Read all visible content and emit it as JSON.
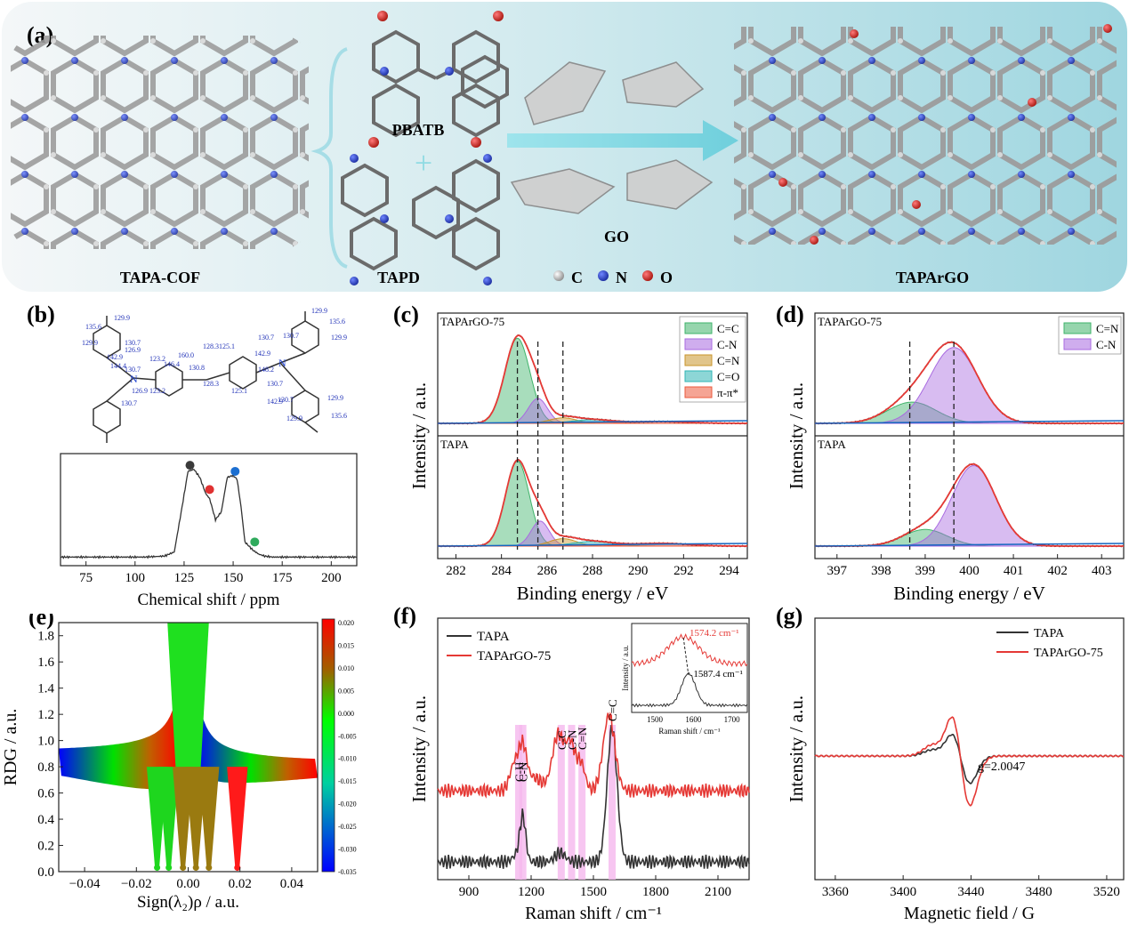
{
  "panel_letters": [
    "(a)",
    "(b)",
    "(c)",
    "(d)",
    "(e)",
    "(f)",
    "(g)"
  ],
  "scheme": {
    "labels": {
      "cof": "TAPA-COF",
      "pbatb": "PBATB",
      "plus": "+",
      "tapd": "TAPD",
      "go": "GO",
      "product": "TAPArGO"
    },
    "atom_legend": [
      {
        "symbol": "C",
        "color": "#8a8a8a"
      },
      {
        "symbol": "N",
        "color": "#1f3fc4"
      },
      {
        "symbol": "O",
        "color": "#c0201e"
      }
    ]
  },
  "nmr_structure": {
    "shift_labels": [
      "129.9",
      "135.6",
      "129.9",
      "130.7",
      "142.9",
      "130.7",
      "144.4",
      "126.9",
      "123.2",
      "146.4",
      "160.0",
      "130.8",
      "128.3",
      "125.1",
      "128.3",
      "125.1",
      "130.7",
      "142.9",
      "148.2",
      "130.7",
      "142.9",
      "129.9",
      "135.6",
      "129.9",
      "130.7",
      "130.7",
      "129.9",
      "135.6",
      "129.9",
      "126.9",
      "123.2",
      "130.7"
    ],
    "atom_letter": "N"
  },
  "chart_data": [
    {
      "id": "b",
      "type": "line",
      "xlabel": "Chemical shift / ppm",
      "ylabel": "",
      "xlim": [
        62,
        213
      ],
      "ylim": [
        0,
        1
      ],
      "xticks": [
        75,
        100,
        125,
        150,
        175,
        200
      ],
      "series": [
        {
          "x": [
            62,
            75,
            90,
            105,
            115,
            120,
            124,
            127,
            130,
            133,
            136,
            138,
            141,
            144,
            147,
            150,
            152,
            154,
            156,
            158,
            160,
            163,
            166,
            170,
            180,
            190,
            200,
            213
          ],
          "y": [
            0.05,
            0.05,
            0.05,
            0.05,
            0.06,
            0.1,
            0.55,
            0.9,
            0.92,
            0.84,
            0.68,
            0.63,
            0.42,
            0.5,
            0.84,
            0.86,
            0.82,
            0.55,
            0.2,
            0.16,
            0.12,
            0.08,
            0.06,
            0.05,
            0.05,
            0.05,
            0.05,
            0.05
          ],
          "color": "#333333"
        }
      ],
      "markers": [
        {
          "x": 128,
          "y": 0.96,
          "color": "#3a3a3a"
        },
        {
          "x": 138,
          "y": 0.72,
          "color": "#e03131"
        },
        {
          "x": 151,
          "y": 0.9,
          "color": "#1c6fd1"
        },
        {
          "x": 161,
          "y": 0.2,
          "color": "#2faa5c"
        }
      ]
    },
    {
      "id": "c",
      "type": "area",
      "xlabel": "Binding energy / eV",
      "ylabel": "Intensity / a.u.",
      "xlim": [
        281.2,
        294.8
      ],
      "xticks": [
        282,
        284,
        286,
        288,
        290,
        292,
        294
      ],
      "subplots": [
        {
          "label": "TAPArGO-75",
          "components": [
            {
              "name": "C=C",
              "center": 284.7,
              "width": 0.55,
              "height": 0.92
            },
            {
              "name": "C-N",
              "center": 285.6,
              "width": 0.42,
              "height": 0.27
            },
            {
              "name": "C=N",
              "center": 286.7,
              "width": 0.6,
              "height": 0.06
            },
            {
              "name": "C=O",
              "center": 288.0,
              "width": 0.9,
              "height": 0.04
            },
            {
              "name": "π-π*",
              "center": 291.0,
              "width": 1.2,
              "height": 0.02
            }
          ]
        },
        {
          "label": "TAPA",
          "components": [
            {
              "name": "C=C",
              "center": 284.7,
              "width": 0.52,
              "height": 0.92
            },
            {
              "name": "C-N",
              "center": 285.7,
              "width": 0.4,
              "height": 0.27
            },
            {
              "name": "C=N",
              "center": 286.7,
              "width": 0.6,
              "height": 0.08
            },
            {
              "name": "C=O",
              "center": 288.0,
              "width": 0.9,
              "height": 0.05
            },
            {
              "name": "π-π*",
              "center": 291.0,
              "width": 1.2,
              "height": 0.03
            }
          ]
        }
      ],
      "dashed_lines_x": [
        284.7,
        285.6,
        286.7
      ],
      "legend": [
        {
          "name": "C=C",
          "color": "#3fb36a"
        },
        {
          "name": "C-N",
          "color": "#a86ae0"
        },
        {
          "name": "C=N",
          "color": "#c9952b"
        },
        {
          "name": "C=O",
          "color": "#2fb5b5"
        },
        {
          "name": "π-π*",
          "color": "#ec5a3c"
        }
      ]
    },
    {
      "id": "d",
      "type": "area",
      "xlabel": "Binding energy / eV",
      "ylabel": "Intensity / a.u.",
      "xlim": [
        396.5,
        403.5
      ],
      "xticks": [
        397,
        398,
        399,
        400,
        401,
        402,
        403
      ],
      "subplots": [
        {
          "label": "TAPArGO-75",
          "components": [
            {
              "name": "C=N",
              "center": 398.7,
              "width": 0.55,
              "height": 0.23
            },
            {
              "name": "C-N",
              "center": 399.65,
              "width": 0.55,
              "height": 0.82
            }
          ]
        },
        {
          "label": "TAPA",
          "components": [
            {
              "name": "C=N",
              "center": 399.0,
              "width": 0.5,
              "height": 0.18
            },
            {
              "name": "C-N",
              "center": 400.1,
              "width": 0.5,
              "height": 0.87
            }
          ]
        }
      ],
      "dashed_lines_x": [
        398.65,
        399.65
      ],
      "legend": [
        {
          "name": "C=N",
          "color": "#3fb36a"
        },
        {
          "name": "C-N",
          "color": "#a86ae0"
        }
      ]
    },
    {
      "id": "e",
      "type": "scatter",
      "xlabel": "Sign(λ₂)ρ / a.u.",
      "ylabel": "RDG / a.u.",
      "xlim": [
        -0.05,
        0.05
      ],
      "ylim": [
        0,
        1.9
      ],
      "xticks": [
        -0.04,
        -0.02,
        0.0,
        0.02,
        0.04
      ],
      "yticks": [
        0.0,
        0.2,
        0.4,
        0.6,
        0.8,
        1.0,
        1.2,
        1.4,
        1.6,
        1.8
      ],
      "spikes_x": [
        -0.012,
        -0.0075,
        -0.002,
        0.003,
        0.008,
        0.019
      ],
      "colorbar": {
        "min": -0.035,
        "max": 0.02,
        "ticks": [
          "0.020",
          "0.015",
          "0.010",
          "0.005",
          "0.000",
          "-0.005",
          "-0.010",
          "-0.015",
          "-0.020",
          "-0.025",
          "-0.030",
          "-0.035"
        ],
        "colors": [
          "#ff0000",
          "#00ff00",
          "#0000ff"
        ]
      }
    },
    {
      "id": "f",
      "type": "line",
      "xlabel": "Raman shift / cm⁻¹",
      "ylabel": "Intensity / a.u.",
      "xlim": [
        750,
        2250
      ],
      "xticks": [
        900,
        1200,
        1500,
        1800,
        2100
      ],
      "series": [
        {
          "name": "TAPA",
          "color": "#333333",
          "offset": 0.0,
          "peaks": [
            {
              "c": 1160,
              "w": 14,
              "h": 0.2
            },
            {
              "c": 1130,
              "w": 20,
              "h": 0.03
            },
            {
              "c": 1340,
              "w": 25,
              "h": 0.04
            },
            {
              "c": 1590,
              "w": 24,
              "h": 0.6
            }
          ]
        },
        {
          "name": "TAPArGO-75",
          "color": "#e53935",
          "offset": 0.32,
          "peaks": [
            {
              "c": 1120,
              "w": 22,
              "h": 0.12
            },
            {
              "c": 1160,
              "w": 18,
              "h": 0.17
            },
            {
              "c": 1330,
              "w": 28,
              "h": 0.25
            },
            {
              "c": 1390,
              "w": 22,
              "h": 0.2
            },
            {
              "c": 1440,
              "w": 20,
              "h": 0.12
            },
            {
              "c": 1575,
              "w": 28,
              "h": 0.34
            },
            {
              "c": 1210,
              "w": 40,
              "h": 0.06
            }
          ]
        }
      ],
      "bands": [
        {
          "x": 1140,
          "label": "C-H"
        },
        {
          "x": 1160,
          "label": "C-N"
        },
        {
          "x": 1345,
          "label": "C-C"
        },
        {
          "x": 1395,
          "label": "C-N"
        },
        {
          "x": 1445,
          "label": "C=N"
        },
        {
          "x": 1590,
          "label": "C=C"
        }
      ],
      "inset": {
        "xlabel": "Raman shift / cm⁻¹",
        "ylabel": "Intensity / a.u.",
        "xlim": [
          1440,
          1740
        ],
        "xticks": [
          1500,
          1600,
          1700
        ],
        "annotations": [
          "1574.2 cm⁻¹",
          "1587.4 cm⁻¹"
        ],
        "peaks": [
          1574.2,
          1587.4
        ]
      }
    },
    {
      "id": "g",
      "type": "line",
      "xlabel": "Magnetic field / G",
      "ylabel": "Intensity / a.u.",
      "xlim": [
        3348,
        3530
      ],
      "xticks": [
        3360,
        3400,
        3440,
        3480,
        3520
      ],
      "annotation": "g=2.0047",
      "series": [
        {
          "name": "TAPA",
          "color": "#333333",
          "amp": 0.55
        },
        {
          "name": "TAPArGO-75",
          "color": "#e53935",
          "amp": 1.0
        }
      ]
    }
  ]
}
